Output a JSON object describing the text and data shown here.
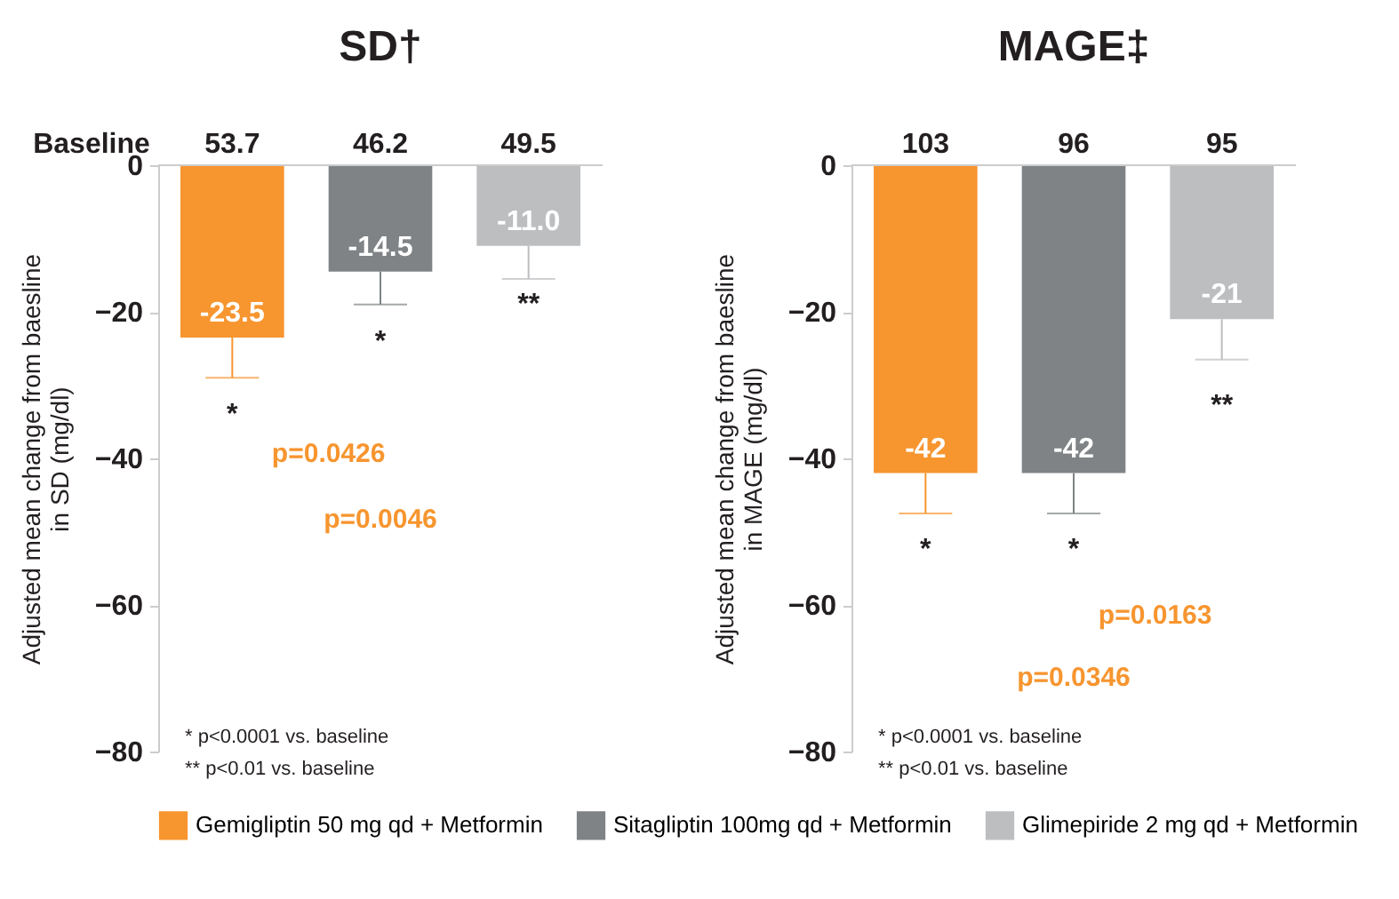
{
  "chart_data": [
    {
      "type": "bar",
      "title": "SD†",
      "ylabel": "Adjusted mean change from baesline in SD (mg/dl)",
      "categories": [
        null
      ],
      "ylim": [
        -80,
        0
      ],
      "yticks": [
        0,
        -20,
        -40,
        -60,
        -80
      ],
      "grid": false,
      "legend": "bottom",
      "series": [
        {
          "name": "Gemigliptin 50 mg qd + Metformin",
          "color": "#f7952f",
          "values": [
            -23.5
          ],
          "value_labels": [
            "-23.5"
          ],
          "errors": [
            [
              -29,
              -23.5
            ]
          ]
        },
        {
          "name": "Sitagliptin 100mg qd + Metformin",
          "color": "#7f8385",
          "values": [
            -14.5
          ],
          "value_labels": [
            "-14.5"
          ],
          "errors": [
            [
              -19,
              -14.5
            ]
          ]
        },
        {
          "name": "Glimepiride 2 mg qd + Metformin",
          "color": "#bcbec0",
          "values": [
            -11.0
          ],
          "value_labels": [
            "-11.0"
          ],
          "errors": [
            [
              -15.5,
              -11.0
            ]
          ]
        }
      ],
      "annotations": [
        "Baseline",
        "53.7",
        "46.2",
        "49.5",
        "*",
        "*",
        "**",
        "p=0.0426",
        "p=0.0046",
        "* p<0.0001 vs. baseline",
        "** p<0.01 vs. baseline"
      ]
    },
    {
      "type": "bar",
      "title": "MAGE‡",
      "ylabel": "Adjusted mean change from baesline in MAGE (mg/dl)",
      "categories": [
        null
      ],
      "ylim": [
        -80,
        0
      ],
      "yticks": [
        0,
        -20,
        -40,
        -60,
        -80
      ],
      "grid": false,
      "legend": "bottom",
      "series": [
        {
          "name": "Gemigliptin 50 mg qd + Metformin",
          "color": "#f7952f",
          "values": [
            -42
          ],
          "value_labels": [
            "-42"
          ],
          "errors": [
            [
              -47.5,
              -42
            ]
          ]
        },
        {
          "name": "Sitagliptin 100mg qd + Metformin",
          "color": "#7f8385",
          "values": [
            -42
          ],
          "value_labels": [
            "-42"
          ],
          "errors": [
            [
              -47.5,
              -42
            ]
          ]
        },
        {
          "name": "Glimepiride 2 mg qd + Metformin",
          "color": "#bcbec0",
          "values": [
            -21
          ],
          "value_labels": [
            "-21"
          ],
          "errors": [
            [
              -26.5,
              -21
            ]
          ]
        }
      ],
      "annotations": [
        "103",
        "96",
        "95",
        "*",
        "*",
        "**",
        "p=0.0163",
        "p=0.0346",
        "* p<0.0001 vs. baseline",
        "** p<0.01 vs. baseline"
      ]
    }
  ]
}
